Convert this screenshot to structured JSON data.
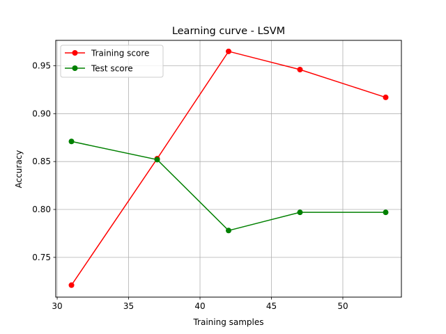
{
  "chart_data": {
    "type": "line",
    "title": "Learning curve - LSVM",
    "xlabel": "Training samples",
    "ylabel": "Accuracy",
    "x": [
      31,
      37,
      42,
      47,
      53
    ],
    "xlim": [
      29.9,
      54.1
    ],
    "ylim": [
      0.7085,
      0.9765
    ],
    "xticks": [
      30,
      35,
      40,
      45,
      50
    ],
    "yticks": [
      0.75,
      0.8,
      0.85,
      0.9,
      0.95
    ],
    "xtick_labels": [
      "30",
      "35",
      "40",
      "45",
      "50"
    ],
    "ytick_labels": [
      "0.75",
      "0.80",
      "0.85",
      "0.90",
      "0.95"
    ],
    "grid": true,
    "legend_position": "upper-left",
    "series": [
      {
        "name": "Training score",
        "color": "#ff0000",
        "marker": "circle",
        "values": [
          0.721,
          0.853,
          0.965,
          0.946,
          0.917
        ]
      },
      {
        "name": "Test score",
        "color": "#008000",
        "marker": "circle",
        "values": [
          0.871,
          0.852,
          0.778,
          0.797,
          0.797
        ]
      }
    ]
  }
}
